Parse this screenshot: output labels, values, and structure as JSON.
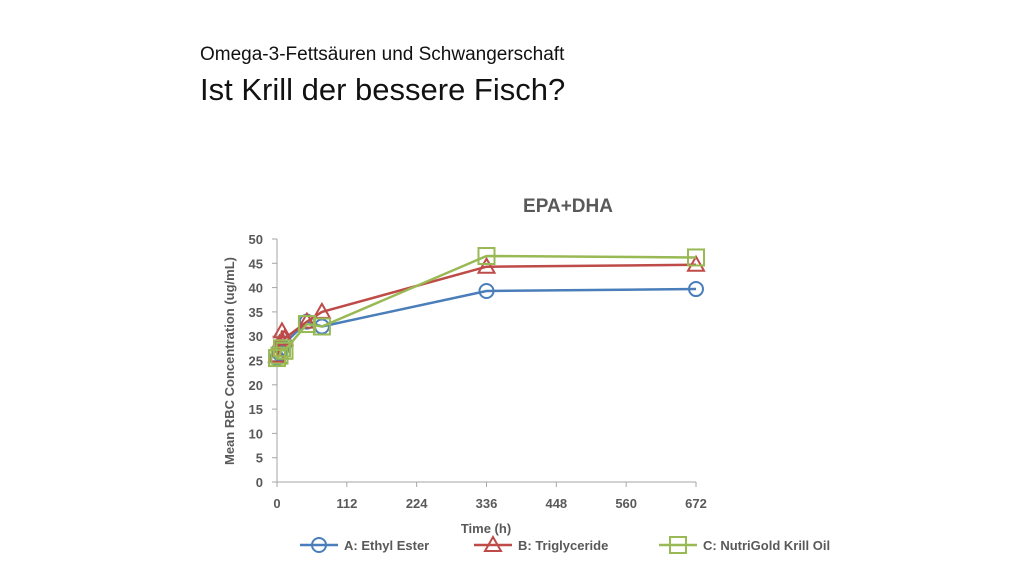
{
  "slide": {
    "subtitle": "Omega-3-Fettsäuren und Schwangerschaft",
    "title": "Ist Krill der bessere Fisch?"
  },
  "chart_data": {
    "type": "line",
    "title": "EPA+DHA",
    "xlabel": "Time (h)",
    "ylabel": "Mean RBC Concentration (ug/mL)",
    "xlim": [
      0,
      672
    ],
    "ylim": [
      0,
      50
    ],
    "x_ticks": [
      0,
      112,
      224,
      336,
      448,
      560,
      672
    ],
    "y_ticks": [
      0,
      5,
      10,
      15,
      20,
      25,
      30,
      35,
      40,
      45,
      50
    ],
    "grid": false,
    "legend_position": "bottom",
    "series": [
      {
        "name": "A: Ethyl Ester",
        "color": "#4a7ebb",
        "marker": "circle",
        "x": [
          0,
          4,
          8,
          12,
          48,
          72,
          336,
          672
        ],
        "y": [
          25.5,
          26.5,
          27.5,
          28.5,
          33,
          32,
          39.3,
          39.7
        ]
      },
      {
        "name": "B: Triglyceride",
        "color": "#be4b48",
        "marker": "triangle",
        "x": [
          0,
          4,
          8,
          12,
          48,
          72,
          336,
          672
        ],
        "y": [
          26,
          28.5,
          31,
          29.5,
          33,
          35,
          44.3,
          44.7
        ]
      },
      {
        "name": "C: NutriGold Krill Oil",
        "color": "#98b954",
        "marker": "square",
        "x": [
          0,
          4,
          8,
          12,
          48,
          72,
          336,
          672
        ],
        "y": [
          25.5,
          26,
          27.5,
          27,
          32.5,
          32,
          46.5,
          46.2
        ]
      }
    ]
  }
}
